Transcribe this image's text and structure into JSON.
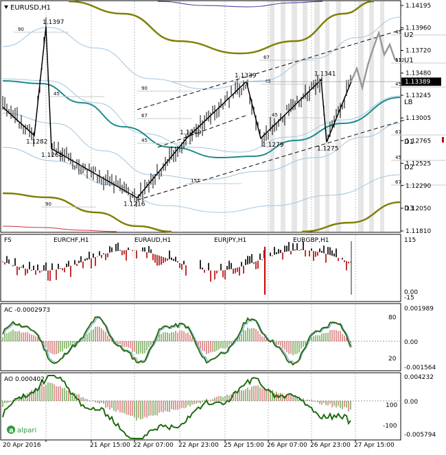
{
  "symbol_title": "EURUSD,H1",
  "colors": {
    "price_bar": "#000000",
    "ma_center": "#1e8a8a",
    "envelope_outer": "#7f7f00",
    "envelope_inner": "#9fc5df",
    "zigzag": "#000000",
    "forecast": "#999999",
    "hist_up": "#2f7a00",
    "hist_down": "#c03030",
    "current_price_bg": "#000000",
    "session_band": "#e6e6e6"
  },
  "price_axis": {
    "ticks": [
      "1.14195",
      "1.13960",
      "1.13720",
      "1.13480",
      "1.13245",
      "1.13005",
      "1.12765",
      "1.12525",
      "1.12290",
      "1.12050",
      "1.11810"
    ],
    "current_price": "1.13389",
    "range": [
      1.1175,
      1.1426
    ]
  },
  "level_labels": [
    {
      "name": "U2",
      "text": "U2"
    },
    {
      "name": "U1",
      "text": "U1"
    },
    {
      "name": "LB",
      "text": "LB"
    },
    {
      "name": "D1",
      "text": "D1"
    },
    {
      "name": "D2",
      "text": "D2"
    },
    {
      "name": "D3",
      "text": "D3"
    }
  ],
  "chart_data": {
    "type": "line",
    "title": "EURUSD,H1",
    "x_labels": [
      "20 Apr 2016",
      "21 Apr 15:00",
      "22 Apr 07:00",
      "22 Apr 23:00",
      "25 Apr 15:00",
      "26 Apr 07:00",
      "26 Apr 23:00",
      "27 Apr 15:00"
    ],
    "zigzag_pivots": [
      {
        "label": "1.1397",
        "value": 1.1397
      },
      {
        "label": "1.1282",
        "value": 1.1282
      },
      {
        "label": "1.1268",
        "value": 1.1268
      },
      {
        "label": "1.1216",
        "value": 1.1216
      },
      {
        "label": "1.1279",
        "value": 1.1279
      },
      {
        "label": "1.1339",
        "value": 1.1339
      },
      {
        "label": "1.1279",
        "value": 1.1279
      },
      {
        "label": "1.1341",
        "value": 1.1341
      },
      {
        "label": "1.1275",
        "value": 1.1275
      }
    ],
    "fibo_labels": [
      "90",
      "45",
      "67",
      "90",
      "45",
      "45",
      "67",
      "45",
      "45",
      "67",
      "45",
      "67",
      "90",
      "157",
      "45",
      "112",
      "67"
    ],
    "strength_panel": {
      "label": "FS",
      "pairs": [
        "EURCHF,H1",
        "EURAUD,H1",
        "EURJPY,H1",
        "EURGBP,H1"
      ],
      "scale": [
        "115",
        "0.00",
        "-15"
      ]
    },
    "ac_panel": {
      "label": "AC -0.0002973",
      "right_scale": [
        "0.001989",
        "0.00",
        "-0.001564"
      ],
      "left_scale": [
        "80",
        "20"
      ]
    },
    "ao_panel": {
      "label": "AO 0.000402",
      "right_scale": [
        "0.004232",
        "0.00",
        "-0.005794"
      ],
      "left_scale": [
        "100",
        "-100"
      ]
    }
  },
  "watermark": "alpari"
}
